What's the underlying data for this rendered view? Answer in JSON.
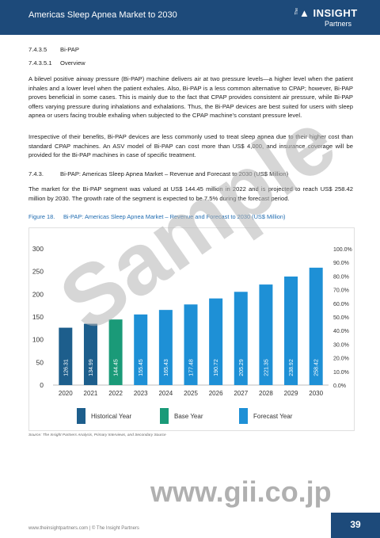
{
  "header": {
    "title": "Americas Sleep Apnea Market to 2030",
    "logo_brand": "INSIGHT",
    "logo_the": "The",
    "logo_sub": "Partners"
  },
  "sections": {
    "s1_num": "7.4.3.5",
    "s1_title": "Bi-PAP",
    "s2_num": "7.4.3.5.1",
    "s2_title": "Overview",
    "s3_num": "7.4.3.",
    "s3_title": "Bi-PAP: Americas Sleep Apnea Market – Revenue and Forecast to 2030 (US$ Million)"
  },
  "paragraphs": {
    "p1": "A bilevel positive airway pressure (Bi-PAP) machine delivers air at two pressure levels—a higher level when the patient inhales and a lower level when the patient exhales. Also, Bi-PAP is a less common alternative to CPAP; however, Bi-PAP proves beneficial in some cases. This is mainly due to the fact that CPAP provides consistent air pressure, while Bi-PAP offers varying pressure during inhalations and exhalations. Thus, the Bi-PAP devices are best suited for users with sleep apnea or users facing trouble exhaling when subjected to the CPAP machine's constant pressure level.",
    "p2": "Irrespective of their benefits, Bi-PAP devices are less commonly used to treat sleep apnea due to their higher cost than standard CPAP machines. An ASV model of Bi-PAP can cost more than US$ 4,000, and insurance coverage will be provided for the Bi-PAP machines in case of specific treatment.",
    "p3": "The market for the Bi-PAP segment was valued at US$ 144.45 million in 2022 and is projected to reach US$ 258.42 million by 2030. The growth rate of the segment is expected to be 7.5% during the forecast period."
  },
  "figure": {
    "number": "Figure 18.",
    "caption": "Bi-PAP: Americas Sleep Apnea Market – Revenue and Forecast to 2030 (US$ Million)",
    "source": "Source: The Insight Partners Analysis, Primary Interviews, and Secondary Source"
  },
  "chart_data": {
    "type": "bar",
    "categories": [
      "2020",
      "2021",
      "2022",
      "2023",
      "2024",
      "2025",
      "2026",
      "2027",
      "2028",
      "2029",
      "2030"
    ],
    "values": [
      126.31,
      134.99,
      144.45,
      155.45,
      165.43,
      177.48,
      190.72,
      205.29,
      221.35,
      238.92,
      258.42
    ],
    "value_labels": [
      "126.31",
      "134.99",
      "144.45",
      "155.45",
      "165.43",
      "177.48",
      "190.72",
      "205.29",
      "221.35",
      "238.92",
      "258.42"
    ],
    "bar_groups": [
      "historical",
      "historical",
      "base",
      "forecast",
      "forecast",
      "forecast",
      "forecast",
      "forecast",
      "forecast",
      "forecast",
      "forecast"
    ],
    "ylim": [
      0,
      300
    ],
    "y_ticks": [
      "0",
      "50",
      "100",
      "150",
      "200",
      "250",
      "300"
    ],
    "y2_ticks": [
      "0.0%",
      "10.0%",
      "20.0%",
      "30.0%",
      "40.0%",
      "50.0%",
      "60.0%",
      "70.0%",
      "80.0%",
      "90.0%",
      "100.0%"
    ],
    "y2lim": [
      0,
      100
    ],
    "grid": false,
    "legend": [
      {
        "key": "historical",
        "label": "Historical Year",
        "color": "#1d5e8c"
      },
      {
        "key": "base",
        "label": "Base Year",
        "color": "#1a9a78"
      },
      {
        "key": "forecast",
        "label": "Forecast Year",
        "color": "#1e90d6"
      }
    ],
    "legend_position": "bottom"
  },
  "footer": {
    "text": "www.theinsightpartners.com   |  © The Insight Partners",
    "page": "39"
  },
  "watermarks": {
    "sample": "Sample",
    "url": "www.gii.co.jp"
  }
}
